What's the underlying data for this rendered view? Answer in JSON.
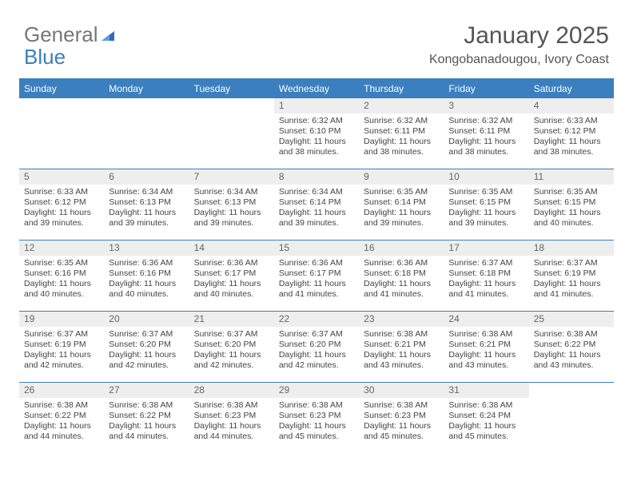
{
  "logo": {
    "part1": "General",
    "part2": "Blue"
  },
  "title": "January 2025",
  "location": "Kongobanadougou, Ivory Coast",
  "colors": {
    "brand": "#3b7fbf",
    "header_bg": "#3b7fbf",
    "header_text": "#ffffff",
    "daynum_bg": "#eeeeee",
    "text": "#444444",
    "border": "#3b7fbf"
  },
  "day_headers": [
    "Sunday",
    "Monday",
    "Tuesday",
    "Wednesday",
    "Thursday",
    "Friday",
    "Saturday"
  ],
  "weeks": [
    [
      {
        "n": "",
        "sunrise": "",
        "sunset": "",
        "daylight": ""
      },
      {
        "n": "",
        "sunrise": "",
        "sunset": "",
        "daylight": ""
      },
      {
        "n": "",
        "sunrise": "",
        "sunset": "",
        "daylight": ""
      },
      {
        "n": "1",
        "sunrise": "Sunrise: 6:32 AM",
        "sunset": "Sunset: 6:10 PM",
        "daylight": "Daylight: 11 hours and 38 minutes."
      },
      {
        "n": "2",
        "sunrise": "Sunrise: 6:32 AM",
        "sunset": "Sunset: 6:11 PM",
        "daylight": "Daylight: 11 hours and 38 minutes."
      },
      {
        "n": "3",
        "sunrise": "Sunrise: 6:32 AM",
        "sunset": "Sunset: 6:11 PM",
        "daylight": "Daylight: 11 hours and 38 minutes."
      },
      {
        "n": "4",
        "sunrise": "Sunrise: 6:33 AM",
        "sunset": "Sunset: 6:12 PM",
        "daylight": "Daylight: 11 hours and 38 minutes."
      }
    ],
    [
      {
        "n": "5",
        "sunrise": "Sunrise: 6:33 AM",
        "sunset": "Sunset: 6:12 PM",
        "daylight": "Daylight: 11 hours and 39 minutes."
      },
      {
        "n": "6",
        "sunrise": "Sunrise: 6:34 AM",
        "sunset": "Sunset: 6:13 PM",
        "daylight": "Daylight: 11 hours and 39 minutes."
      },
      {
        "n": "7",
        "sunrise": "Sunrise: 6:34 AM",
        "sunset": "Sunset: 6:13 PM",
        "daylight": "Daylight: 11 hours and 39 minutes."
      },
      {
        "n": "8",
        "sunrise": "Sunrise: 6:34 AM",
        "sunset": "Sunset: 6:14 PM",
        "daylight": "Daylight: 11 hours and 39 minutes."
      },
      {
        "n": "9",
        "sunrise": "Sunrise: 6:35 AM",
        "sunset": "Sunset: 6:14 PM",
        "daylight": "Daylight: 11 hours and 39 minutes."
      },
      {
        "n": "10",
        "sunrise": "Sunrise: 6:35 AM",
        "sunset": "Sunset: 6:15 PM",
        "daylight": "Daylight: 11 hours and 39 minutes."
      },
      {
        "n": "11",
        "sunrise": "Sunrise: 6:35 AM",
        "sunset": "Sunset: 6:15 PM",
        "daylight": "Daylight: 11 hours and 40 minutes."
      }
    ],
    [
      {
        "n": "12",
        "sunrise": "Sunrise: 6:35 AM",
        "sunset": "Sunset: 6:16 PM",
        "daylight": "Daylight: 11 hours and 40 minutes."
      },
      {
        "n": "13",
        "sunrise": "Sunrise: 6:36 AM",
        "sunset": "Sunset: 6:16 PM",
        "daylight": "Daylight: 11 hours and 40 minutes."
      },
      {
        "n": "14",
        "sunrise": "Sunrise: 6:36 AM",
        "sunset": "Sunset: 6:17 PM",
        "daylight": "Daylight: 11 hours and 40 minutes."
      },
      {
        "n": "15",
        "sunrise": "Sunrise: 6:36 AM",
        "sunset": "Sunset: 6:17 PM",
        "daylight": "Daylight: 11 hours and 41 minutes."
      },
      {
        "n": "16",
        "sunrise": "Sunrise: 6:36 AM",
        "sunset": "Sunset: 6:18 PM",
        "daylight": "Daylight: 11 hours and 41 minutes."
      },
      {
        "n": "17",
        "sunrise": "Sunrise: 6:37 AM",
        "sunset": "Sunset: 6:18 PM",
        "daylight": "Daylight: 11 hours and 41 minutes."
      },
      {
        "n": "18",
        "sunrise": "Sunrise: 6:37 AM",
        "sunset": "Sunset: 6:19 PM",
        "daylight": "Daylight: 11 hours and 41 minutes."
      }
    ],
    [
      {
        "n": "19",
        "sunrise": "Sunrise: 6:37 AM",
        "sunset": "Sunset: 6:19 PM",
        "daylight": "Daylight: 11 hours and 42 minutes."
      },
      {
        "n": "20",
        "sunrise": "Sunrise: 6:37 AM",
        "sunset": "Sunset: 6:20 PM",
        "daylight": "Daylight: 11 hours and 42 minutes."
      },
      {
        "n": "21",
        "sunrise": "Sunrise: 6:37 AM",
        "sunset": "Sunset: 6:20 PM",
        "daylight": "Daylight: 11 hours and 42 minutes."
      },
      {
        "n": "22",
        "sunrise": "Sunrise: 6:37 AM",
        "sunset": "Sunset: 6:20 PM",
        "daylight": "Daylight: 11 hours and 42 minutes."
      },
      {
        "n": "23",
        "sunrise": "Sunrise: 6:38 AM",
        "sunset": "Sunset: 6:21 PM",
        "daylight": "Daylight: 11 hours and 43 minutes."
      },
      {
        "n": "24",
        "sunrise": "Sunrise: 6:38 AM",
        "sunset": "Sunset: 6:21 PM",
        "daylight": "Daylight: 11 hours and 43 minutes."
      },
      {
        "n": "25",
        "sunrise": "Sunrise: 6:38 AM",
        "sunset": "Sunset: 6:22 PM",
        "daylight": "Daylight: 11 hours and 43 minutes."
      }
    ],
    [
      {
        "n": "26",
        "sunrise": "Sunrise: 6:38 AM",
        "sunset": "Sunset: 6:22 PM",
        "daylight": "Daylight: 11 hours and 44 minutes."
      },
      {
        "n": "27",
        "sunrise": "Sunrise: 6:38 AM",
        "sunset": "Sunset: 6:22 PM",
        "daylight": "Daylight: 11 hours and 44 minutes."
      },
      {
        "n": "28",
        "sunrise": "Sunrise: 6:38 AM",
        "sunset": "Sunset: 6:23 PM",
        "daylight": "Daylight: 11 hours and 44 minutes."
      },
      {
        "n": "29",
        "sunrise": "Sunrise: 6:38 AM",
        "sunset": "Sunset: 6:23 PM",
        "daylight": "Daylight: 11 hours and 45 minutes."
      },
      {
        "n": "30",
        "sunrise": "Sunrise: 6:38 AM",
        "sunset": "Sunset: 6:23 PM",
        "daylight": "Daylight: 11 hours and 45 minutes."
      },
      {
        "n": "31",
        "sunrise": "Sunrise: 6:38 AM",
        "sunset": "Sunset: 6:24 PM",
        "daylight": "Daylight: 11 hours and 45 minutes."
      },
      {
        "n": "",
        "sunrise": "",
        "sunset": "",
        "daylight": ""
      }
    ]
  ]
}
